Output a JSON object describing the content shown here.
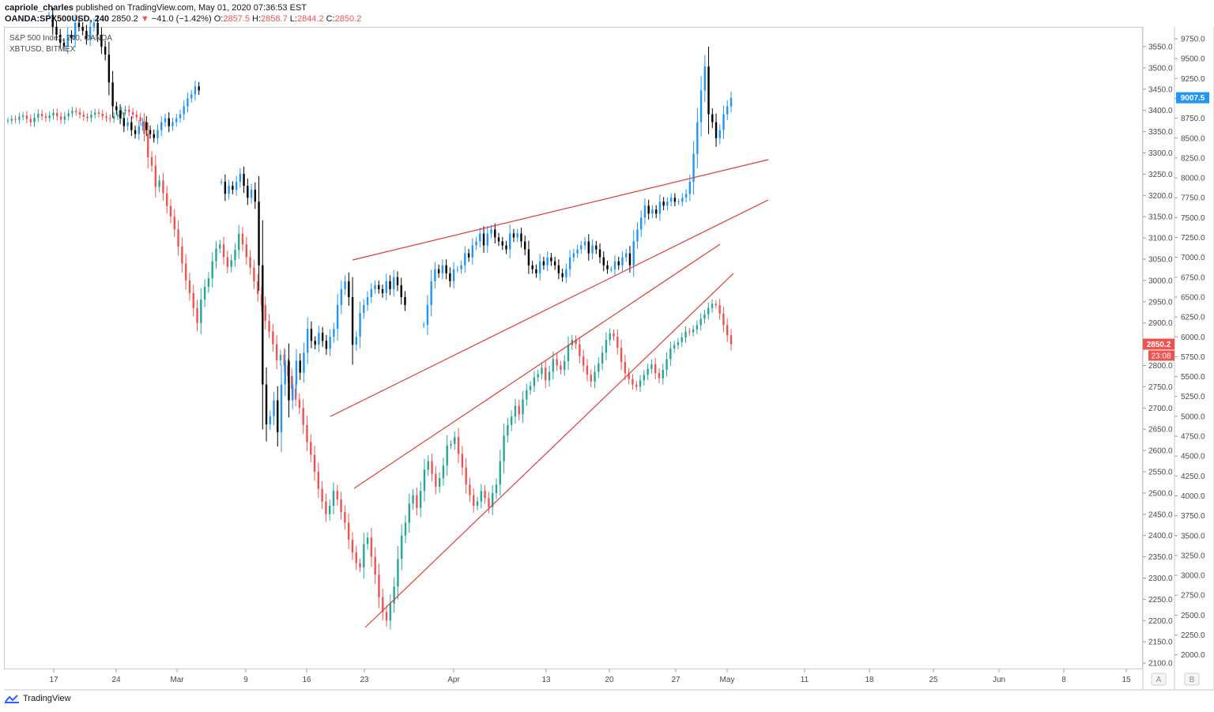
{
  "header": {
    "user": "capriole_charles",
    "published_text": "published on TradingView.com, May 01, 2020 07:36:53 EST"
  },
  "symbol_row": {
    "symbol": "OANDA:SPX500USD, 240",
    "last": "2850.2",
    "change": "−41.0 (−1.42%)",
    "o_label": "O:",
    "o": "2857.5",
    "h_label": "H:",
    "h": "2858.7",
    "l_label": "L:",
    "l": "2844.2",
    "c_label": "C:",
    "c": "2850.2"
  },
  "legend": {
    "line1": "S&P 500 Index, 240, OANDA",
    "line2": "XBTUSD, BITMEX"
  },
  "footer": {
    "brand": "TradingView"
  },
  "colors": {
    "up": "#26a69a",
    "down": "#ef5350",
    "xbt_up": "#2196f3",
    "xbt_down": "#000000",
    "trend": "#e53935",
    "axis_text": "#4a4a4a"
  },
  "chart_data": {
    "type": "candlestick",
    "x_ticks": [
      "17",
      "24",
      "Mar",
      "9",
      "16",
      "23",
      "Apr",
      "13",
      "20",
      "27",
      "May",
      "11",
      "18",
      "25",
      "Jun",
      "8",
      "15"
    ],
    "scale_buttons": [
      "A",
      "B"
    ],
    "left_axis": {
      "ticks": [
        "3550.0",
        "3500.0",
        "3450.0",
        "3400.0",
        "3350.0",
        "3300.0",
        "3250.0",
        "3200.0",
        "3150.0",
        "3100.0",
        "3050.0",
        "3000.0",
        "2950.0",
        "2900.0",
        "2850.0",
        "2800.0",
        "2750.0",
        "2700.0",
        "2650.0",
        "2600.0",
        "2550.0",
        "2500.0",
        "2450.0",
        "2400.0",
        "2350.0",
        "2300.0",
        "2250.0",
        "2200.0",
        "2150.0",
        "2100.0"
      ],
      "range": [
        2100,
        3550
      ],
      "last_price_badge": "2850.2",
      "countdown_badge": "23:08"
    },
    "right_axis": {
      "ticks": [
        "9750.0",
        "9500.0",
        "9250.0",
        "9000.0",
        "8750.0",
        "8500.0",
        "8250.0",
        "8000.0",
        "7750.0",
        "7500.0",
        "7250.0",
        "7000.0",
        "6750.0",
        "6500.0",
        "6250.0",
        "6000.0",
        "5750.0",
        "5500.0",
        "5250.0",
        "5000.0",
        "4750.0",
        "4500.0",
        "4250.0",
        "4000.0",
        "3750.0",
        "3500.0",
        "3250.0",
        "3000.0",
        "2750.0",
        "2500.0",
        "2250.0",
        "2000.0"
      ],
      "range": [
        2000,
        9750
      ],
      "last_price_badge": "9007.5"
    },
    "series": [
      {
        "name": "S&P 500 Index, 240, OANDA",
        "closes": [
          3376,
          3380,
          3378,
          3385,
          3388,
          3380,
          3372,
          3383,
          3392,
          3386,
          3382,
          3388,
          3394,
          3386,
          3378,
          3386,
          3393,
          3399,
          3396,
          3390,
          3385,
          3382,
          3390,
          3395,
          3392,
          3386,
          3382,
          3380,
          3386,
          3390,
          3398,
          3402,
          3396,
          3390,
          3384,
          3375,
          3345,
          3290,
          3270,
          3220,
          3235,
          3205,
          3175,
          3150,
          3120,
          3080,
          3040,
          3000,
          2970,
          2935,
          2900,
          2955,
          2985,
          3005,
          3045,
          3075,
          3085,
          3055,
          3032,
          3048,
          3072,
          3110,
          3085,
          3055,
          3030,
          2998,
          2968,
          2942,
          2905,
          2880,
          2850,
          2812,
          2825,
          2800,
          2775,
          2745,
          2720,
          2700,
          2660,
          2620,
          2590,
          2550,
          2510,
          2480,
          2450,
          2470,
          2505,
          2485,
          2455,
          2430,
          2390,
          2360,
          2335,
          2325,
          2380,
          2395,
          2350,
          2308,
          2255,
          2220,
          2200,
          2240,
          2280,
          2345,
          2400,
          2430,
          2475,
          2495,
          2465,
          2505,
          2555,
          2575,
          2545,
          2515,
          2535,
          2565,
          2612,
          2615,
          2632,
          2592,
          2560,
          2520,
          2495,
          2470,
          2480,
          2505,
          2488,
          2467,
          2500,
          2520,
          2575,
          2635,
          2660,
          2680,
          2705,
          2685,
          2720,
          2742,
          2752,
          2772,
          2780,
          2795,
          2765,
          2785,
          2815,
          2800,
          2790,
          2810,
          2848,
          2860,
          2850,
          2822,
          2800,
          2778,
          2762,
          2785,
          2805,
          2830,
          2860,
          2875,
          2868,
          2842,
          2808,
          2782,
          2768,
          2755,
          2750,
          2765,
          2778,
          2792,
          2803,
          2782,
          2770,
          2790,
          2815,
          2840,
          2848,
          2855,
          2866,
          2880,
          2878,
          2885,
          2895,
          2910,
          2920,
          2935,
          2945,
          2942,
          2922,
          2895,
          2871,
          2850
        ]
      },
      {
        "name": "XBTUSD, BITMEX",
        "closes": [
          10050,
          9900,
          9800,
          9700,
          9650,
          9800,
          9750,
          9950,
          9900,
          9850,
          9750,
          9900,
          9950,
          9800,
          9650,
          9550,
          9200,
          8900,
          8850,
          8750,
          8650,
          8700,
          8600,
          8550,
          8650,
          8700,
          8600,
          8550,
          8500,
          8600,
          8700,
          8750,
          8650,
          8700,
          8750,
          8800,
          8900,
          9000,
          9050,
          9150,
          9100,
          null,
          null,
          null,
          null,
          null,
          7950,
          7800,
          7900,
          7850,
          7950,
          8050,
          7900,
          7750,
          7850,
          7700,
          6900,
          5400,
          4900,
          5000,
          5200,
          4800,
          5400,
          5700,
          5200,
          5400,
          5700,
          5550,
          5800,
          6100,
          5950,
          5900,
          6050,
          5950,
          5850,
          6000,
          6100,
          6400,
          6600,
          6700,
          6500,
          5900,
          6000,
          6300,
          6400,
          6500,
          6600,
          6650,
          6600,
          6550,
          6700,
          6600,
          6750,
          6650,
          6500,
          6400,
          null,
          null,
          null,
          null,
          6150,
          6400,
          6700,
          6850,
          6800,
          6900,
          6800,
          6700,
          6850,
          6850,
          6900,
          7050,
          7000,
          7150,
          7200,
          7300,
          7150,
          7300,
          7350,
          7250,
          7200,
          7150,
          7100,
          7300,
          7250,
          7300,
          7200,
          7100,
          6900,
          6850,
          6800,
          6950,
          6900,
          7000,
          6950,
          6900,
          6800,
          6750,
          6850,
          7000,
          7050,
          7100,
          7150,
          7200,
          7050,
          7150,
          7100,
          7000,
          6900,
          6850,
          6850,
          6950,
          6900,
          7000,
          7050,
          6900,
          7200,
          7350,
          7500,
          7650,
          7550,
          7600,
          7550,
          7700,
          7650,
          7700,
          7750,
          7700,
          7700,
          7750,
          7800,
          7950,
          8300,
          8700,
          9100,
          9400,
          8800,
          8700,
          8500,
          8600,
          8800,
          8900,
          9007.5
        ]
      }
    ],
    "trend_lines": 5
  }
}
